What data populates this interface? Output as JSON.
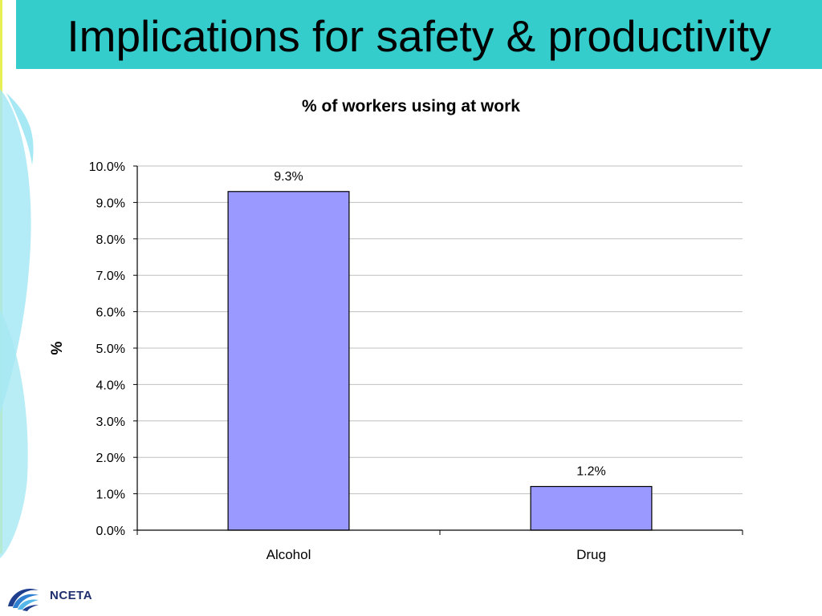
{
  "slide": {
    "title": "Implications for safety & productivity"
  },
  "logo": {
    "text": "NCETA",
    "icon": "nceta-swirl-icon"
  },
  "colors": {
    "header": "#35cccc",
    "bar_fill": "#9999ff",
    "bar_stroke": "#000000",
    "swoosh": "#a6e8f4",
    "gridline": "#c0c0c0"
  },
  "chart_data": {
    "type": "bar",
    "title": "% of workers using at work",
    "xlabel": "",
    "ylabel": "%",
    "categories": [
      "Alcohol",
      "Drug"
    ],
    "values": [
      9.3,
      1.2
    ],
    "data_labels": [
      "9.3%",
      "1.2%"
    ],
    "ylim": [
      0,
      10
    ],
    "yticks": [
      0,
      1,
      2,
      3,
      4,
      5,
      6,
      7,
      8,
      9,
      10
    ],
    "ytick_labels": [
      "0.0%",
      "1.0%",
      "2.0%",
      "3.0%",
      "4.0%",
      "5.0%",
      "6.0%",
      "7.0%",
      "8.0%",
      "9.0%",
      "10.0%"
    ],
    "grid": true,
    "legend": "none"
  }
}
